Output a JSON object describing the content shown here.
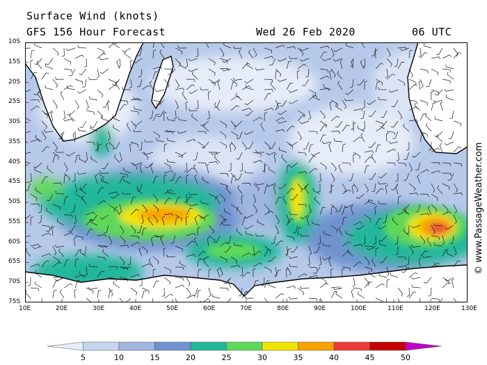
{
  "header": {
    "title": "Surface Wind (knots)",
    "subtitle": "GFS 156 Hour Forecast",
    "date": "Wed 26 Feb 2020",
    "time": "06 UTC"
  },
  "credit": "© www.PassageWeather.com",
  "lat_labels": [
    "10S",
    "15S",
    "20S",
    "25S",
    "30S",
    "35S",
    "40S",
    "45S",
    "50S",
    "55S",
    "60S",
    "65S",
    "70S",
    "75S"
  ],
  "lon_labels": [
    "10E",
    "20E",
    "30E",
    "40E",
    "50E",
    "60E",
    "70E",
    "80E",
    "90E",
    "100E",
    "110E",
    "120E",
    "130E"
  ],
  "legend": {
    "ticks": [
      "5",
      "10",
      "15",
      "20",
      "25",
      "30",
      "35",
      "40",
      "45",
      "50"
    ],
    "colors": [
      "#e8eefa",
      "#c6d5ee",
      "#9fb6e0",
      "#6f93d0",
      "#22b79b",
      "#5fd85a",
      "#f2e400",
      "#f7a300",
      "#ef3a3a",
      "#c70000",
      "#c000c8"
    ]
  },
  "chart_data": {
    "type": "heatmap",
    "title": "Surface Wind (knots)",
    "xrange": [
      10,
      130
    ],
    "yrange": [
      -75,
      -10
    ],
    "units": "knots",
    "scale_ticks": [
      5,
      10,
      15,
      20,
      25,
      30,
      35,
      40,
      45,
      50
    ]
  }
}
